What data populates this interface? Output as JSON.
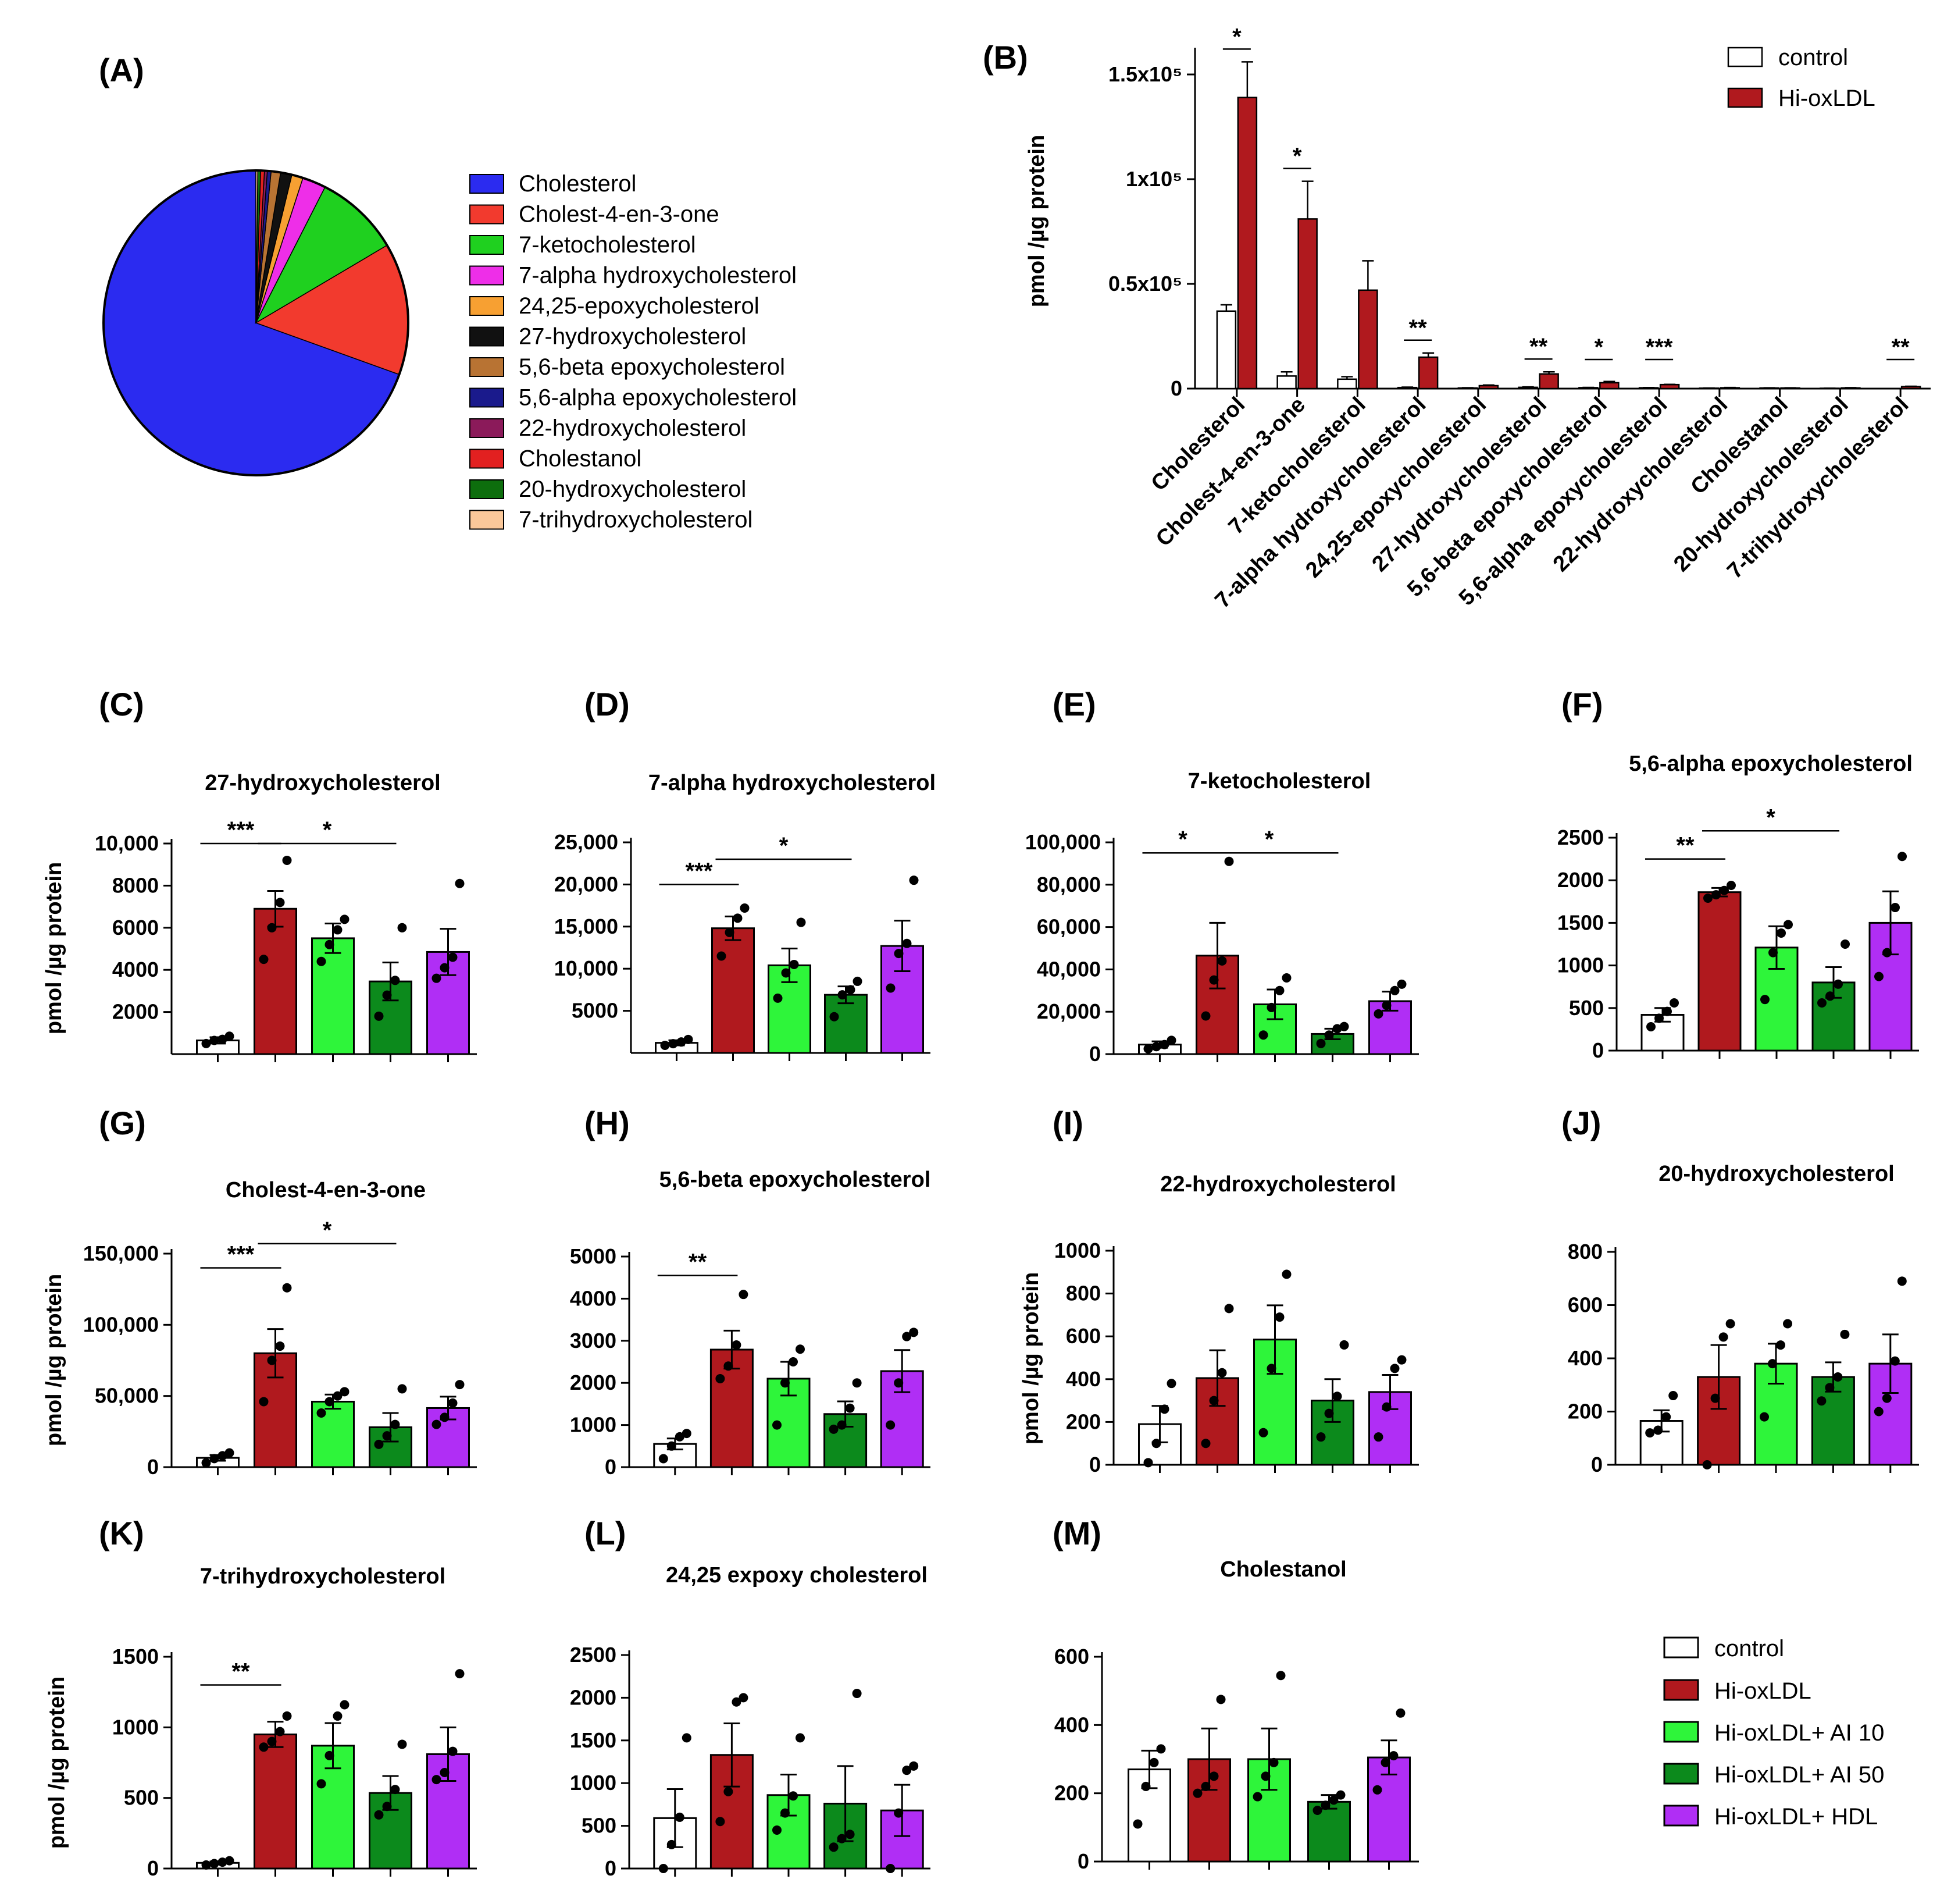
{
  "colors": {
    "control": "#ffffff",
    "hiox": "#b0191e",
    "ai10": "#2ef53a",
    "ai50": "#0c8a1c",
    "hdl": "#b02ef5"
  },
  "groups": [
    "control",
    "Hi-oxLDL",
    "Hi-oxLDL+ AI 10",
    "Hi-oxLDL+ AI 50",
    "Hi-oxLDL+ HDL"
  ],
  "chart_data": [
    {
      "id": "A",
      "panel_label": "(A)",
      "type": "pie",
      "slices": [
        {
          "label": "Cholesterol",
          "value": 69.5,
          "color": "#2b2bf0"
        },
        {
          "label": "Cholest-4-en-3-one",
          "value": 14.0,
          "color": "#f23a2e"
        },
        {
          "label": "7-ketocholesterol",
          "value": 9.0,
          "color": "#1fd01f"
        },
        {
          "label": "7-alpha hydroxycholesterol",
          "value": 2.5,
          "color": "#ee2ee8"
        },
        {
          "label": "24,25-epoxycholesterol",
          "value": 1.2,
          "color": "#f7a032"
        },
        {
          "label": "27-hydroxycholesterol",
          "value": 1.2,
          "color": "#111111"
        },
        {
          "label": "5,6-beta epoxycholesterol",
          "value": 1.0,
          "color": "#b87333"
        },
        {
          "label": "5,6-alpha epoxycholesterol",
          "value": 0.4,
          "color": "#1a1a8c"
        },
        {
          "label": "22-hydroxycholesterol",
          "value": 0.3,
          "color": "#8b1a5a"
        },
        {
          "label": "Cholestanol",
          "value": 0.4,
          "color": "#e22020"
        },
        {
          "label": "20-hydroxycholesterol",
          "value": 0.3,
          "color": "#0d6e0d"
        },
        {
          "label": "7-trihydroxycholesterol",
          "value": 0.2,
          "color": "#fbc89a"
        }
      ]
    },
    {
      "id": "B",
      "panel_label": "(B)",
      "type": "bar",
      "ylabel": "pmol /µg protein",
      "ylim": [
        0,
        160000
      ],
      "yticks": [
        {
          "v": 0,
          "t": "0"
        },
        {
          "v": 50000,
          "t": "0.5x10⁵"
        },
        {
          "v": 100000,
          "t": "1x10⁵"
        },
        {
          "v": 150000,
          "t": "1.5x10⁵"
        }
      ],
      "categories": [
        "Cholesterol",
        "Cholest-4-en-3-one",
        "7-ketocholesterol",
        "7-alpha hydroxycholesterol",
        "24,25-epoxycholesterol",
        "27-hydroxycholesterol",
        "5,6-beta epoxycholesterol",
        "5,6-alpha epoxycholesterol",
        "22-hydroxycholesterol",
        "Cholestanol",
        "20-hydroxycholesterol",
        "7-trihydroxycholesterol"
      ],
      "series": [
        {
          "name": "control",
          "values": [
            37000,
            6000,
            4500,
            500,
            300,
            600,
            450,
            400,
            200,
            300,
            150,
            60
          ],
          "errors": [
            3000,
            2000,
            1200,
            200,
            100,
            200,
            100,
            100,
            80,
            80,
            40,
            20
          ]
        },
        {
          "name": "Hi-oxLDL",
          "values": [
            139000,
            81000,
            47000,
            15000,
            1400,
            7000,
            2800,
            1900,
            400,
            300,
            330,
            950
          ],
          "errors": [
            17000,
            18000,
            14000,
            2000,
            300,
            1000,
            600,
            100,
            130,
            90,
            120,
            150
          ]
        }
      ],
      "significance": [
        {
          "cat": 0,
          "stars": "*"
        },
        {
          "cat": 1,
          "stars": "*"
        },
        {
          "cat": 3,
          "stars": "**"
        },
        {
          "cat": 5,
          "stars": "**"
        },
        {
          "cat": 6,
          "stars": "*"
        },
        {
          "cat": 7,
          "stars": "***"
        },
        {
          "cat": 11,
          "stars": "**"
        }
      ],
      "legend": [
        "control",
        "Hi-oxLDL"
      ]
    },
    {
      "id": "C",
      "panel_label": "(C)",
      "type": "bar",
      "title": "27-hydroxycholesterol",
      "ylabel": "pmol /µg protein",
      "ylim": [
        0,
        10000
      ],
      "yticks": [
        {
          "v": 2000,
          "t": "2000"
        },
        {
          "v": 4000,
          "t": "4000"
        },
        {
          "v": 6000,
          "t": "6000"
        },
        {
          "v": 8000,
          "t": "8000"
        },
        {
          "v": 10000,
          "t": "10,000"
        }
      ],
      "values": [
        650,
        6900,
        5500,
        3450,
        4850
      ],
      "errors": [
        150,
        850,
        700,
        900,
        1100
      ],
      "points": [
        [
          500,
          650,
          700,
          850
        ],
        [
          4500,
          6000,
          7200,
          9200
        ],
        [
          4400,
          5200,
          5900,
          6400
        ],
        [
          1800,
          2800,
          3500,
          6000
        ],
        [
          3600,
          4100,
          4600,
          8100
        ]
      ],
      "sig": [
        {
          "a": 0,
          "b": 1,
          "stars": "***",
          "level": 10000
        },
        {
          "a": 1,
          "b": 3,
          "stars": "*",
          "level": 10000
        }
      ]
    },
    {
      "id": "D",
      "panel_label": "(D)",
      "type": "bar",
      "title": "7-alpha hydroxycholesterol",
      "ylabel": "",
      "ylim": [
        0,
        25000
      ],
      "yticks": [
        {
          "v": 5000,
          "t": "5000"
        },
        {
          "v": 10000,
          "t": "10,000"
        },
        {
          "v": 15000,
          "t": "15,000"
        },
        {
          "v": 20000,
          "t": "20,000"
        },
        {
          "v": 25000,
          "t": "25,000"
        }
      ],
      "values": [
        1200,
        14800,
        10400,
        6900,
        12700
      ],
      "errors": [
        300,
        1400,
        2000,
        1000,
        3000
      ],
      "points": [
        [
          900,
          1100,
          1300,
          1600
        ],
        [
          11500,
          14300,
          16000,
          17200
        ],
        [
          6500,
          9500,
          10500,
          15500
        ],
        [
          4300,
          6900,
          7500,
          8500
        ],
        [
          7700,
          11800,
          13000,
          20500
        ]
      ],
      "sig": [
        {
          "a": 0,
          "b": 1,
          "stars": "***",
          "level": 20000
        },
        {
          "a": 1,
          "b": 3,
          "stars": "*",
          "level": 23000
        }
      ]
    },
    {
      "id": "E",
      "panel_label": "(E)",
      "type": "bar",
      "title": "7-ketocholesterol",
      "ylabel": "",
      "ylim": [
        0,
        100000
      ],
      "yticks": [
        {
          "v": 0,
          "t": "0"
        },
        {
          "v": 20000,
          "t": "20,000"
        },
        {
          "v": 40000,
          "t": "40,000"
        },
        {
          "v": 60000,
          "t": "60,000"
        },
        {
          "v": 80000,
          "t": "80,000"
        },
        {
          "v": 100000,
          "t": "100,000"
        }
      ],
      "values": [
        4500,
        46500,
        23500,
        9500,
        25000
      ],
      "errors": [
        1500,
        15500,
        7000,
        2500,
        4500
      ],
      "points": [
        [
          2500,
          3500,
          4500,
          6500
        ],
        [
          18000,
          35000,
          44000,
          91000
        ],
        [
          9000,
          22000,
          30000,
          36000
        ],
        [
          5000,
          9000,
          12000,
          13000
        ],
        [
          19000,
          23000,
          30000,
          33000
        ]
      ],
      "sig": [
        {
          "a": 0,
          "b": 1,
          "stars": "*",
          "level": 95000
        },
        {
          "a": 1,
          "b": 3,
          "stars": "*",
          "level": 95000
        }
      ]
    },
    {
      "id": "F",
      "panel_label": "(F)",
      "type": "bar",
      "title": "5,6-alpha epoxycholesterol",
      "ylabel": "",
      "ylim": [
        0,
        2500
      ],
      "yticks": [
        {
          "v": 0,
          "t": "0"
        },
        {
          "v": 500,
          "t": "500"
        },
        {
          "v": 1000,
          "t": "1000"
        },
        {
          "v": 1500,
          "t": "1500"
        },
        {
          "v": 2000,
          "t": "2000"
        },
        {
          "v": 2500,
          "t": "2500"
        }
      ],
      "values": [
        420,
        1860,
        1210,
        800,
        1500
      ],
      "errors": [
        80,
        50,
        250,
        180,
        370
      ],
      "points": [
        [
          280,
          380,
          460,
          560
        ],
        [
          1790,
          1830,
          1880,
          1940
        ],
        [
          600,
          1150,
          1380,
          1480
        ],
        [
          560,
          640,
          780,
          1250
        ],
        [
          870,
          1150,
          1680,
          2280
        ]
      ],
      "sig": [
        {
          "a": 0,
          "b": 1,
          "stars": "**",
          "level": 2250
        },
        {
          "a": 1,
          "b": 3,
          "stars": "*",
          "level": 2580
        }
      ]
    },
    {
      "id": "G",
      "panel_label": "(G)",
      "type": "bar",
      "title": "Cholest-4-en-3-one",
      "ylabel": "pmol /µg protein",
      "ylim": [
        0,
        150000
      ],
      "yticks": [
        {
          "v": 0,
          "t": "0"
        },
        {
          "v": 50000,
          "t": "50,000"
        },
        {
          "v": 100000,
          "t": "100,000"
        },
        {
          "v": 150000,
          "t": "150,000"
        }
      ],
      "values": [
        6500,
        80000,
        46000,
        28000,
        41500
      ],
      "errors": [
        2000,
        17000,
        5000,
        10000,
        8000
      ],
      "points": [
        [
          3000,
          6000,
          8000,
          10000
        ],
        [
          46000,
          75000,
          85000,
          126000
        ],
        [
          38000,
          46000,
          50000,
          53000
        ],
        [
          16000,
          22000,
          30000,
          55000
        ],
        [
          30000,
          35000,
          45000,
          58000
        ]
      ],
      "sig": [
        {
          "a": 0,
          "b": 1,
          "stars": "***",
          "level": 140000
        },
        {
          "a": 1,
          "b": 3,
          "stars": "*",
          "level": 157000
        }
      ]
    },
    {
      "id": "H",
      "panel_label": "(H)",
      "type": "bar",
      "title": "5,6-beta epoxycholesterol",
      "ylabel": "",
      "ylim": [
        0,
        5000
      ],
      "yticks": [
        {
          "v": 0,
          "t": "0"
        },
        {
          "v": 1000,
          "t": "1000"
        },
        {
          "v": 2000,
          "t": "2000"
        },
        {
          "v": 3000,
          "t": "3000"
        },
        {
          "v": 4000,
          "t": "4000"
        },
        {
          "v": 5000,
          "t": "5000"
        }
      ],
      "values": [
        550,
        2790,
        2100,
        1260,
        2280
      ],
      "errors": [
        130,
        450,
        400,
        300,
        500
      ],
      "points": [
        [
          200,
          500,
          720,
          800
        ],
        [
          2100,
          2400,
          2900,
          4100
        ],
        [
          1000,
          2000,
          2500,
          2800
        ],
        [
          900,
          1000,
          1400,
          2000
        ],
        [
          1000,
          2000,
          3100,
          3200
        ]
      ],
      "sig": [
        {
          "a": 0,
          "b": 1,
          "stars": "**",
          "level": 4550
        }
      ]
    },
    {
      "id": "I",
      "panel_label": "(I)",
      "type": "bar",
      "title": "22-hydroxycholesterol",
      "ylabel": "pmol /µg protein",
      "ylim": [
        0,
        1000
      ],
      "yticks": [
        {
          "v": 0,
          "t": "0"
        },
        {
          "v": 200,
          "t": "200"
        },
        {
          "v": 400,
          "t": "400"
        },
        {
          "v": 600,
          "t": "600"
        },
        {
          "v": 800,
          "t": "800"
        },
        {
          "v": 1000,
          "t": "1000"
        }
      ],
      "values": [
        190,
        405,
        585,
        300,
        340
      ],
      "errors": [
        85,
        130,
        160,
        100,
        80
      ],
      "points": [
        [
          10,
          100,
          260,
          380
        ],
        [
          100,
          300,
          430,
          730
        ],
        [
          150,
          450,
          690,
          890
        ],
        [
          130,
          240,
          320,
          560
        ],
        [
          130,
          270,
          450,
          490
        ]
      ],
      "sig": []
    },
    {
      "id": "J",
      "panel_label": "(J)",
      "type": "bar",
      "title": "20-hydroxycholesterol",
      "ylabel": "",
      "ylim": [
        0,
        800
      ],
      "yticks": [
        {
          "v": 0,
          "t": "0"
        },
        {
          "v": 200,
          "t": "200"
        },
        {
          "v": 400,
          "t": "400"
        },
        {
          "v": 600,
          "t": "600"
        },
        {
          "v": 800,
          "t": "800"
        }
      ],
      "values": [
        165,
        330,
        380,
        330,
        380
      ],
      "errors": [
        40,
        120,
        75,
        55,
        110
      ],
      "points": [
        [
          120,
          130,
          180,
          260
        ],
        [
          0,
          250,
          480,
          530
        ],
        [
          180,
          380,
          450,
          530
        ],
        [
          240,
          290,
          330,
          490
        ],
        [
          200,
          250,
          390,
          690
        ]
      ],
      "sig": []
    },
    {
      "id": "K",
      "panel_label": "(K)",
      "type": "bar",
      "title": "7-trihydroxycholesterol",
      "ylabel": "pmol /µg protein",
      "ylim": [
        0,
        1500
      ],
      "yticks": [
        {
          "v": 0,
          "t": "0"
        },
        {
          "v": 500,
          "t": "500"
        },
        {
          "v": 1000,
          "t": "1000"
        },
        {
          "v": 1500,
          "t": "1500"
        }
      ],
      "values": [
        40,
        950,
        870,
        535,
        810
      ],
      "errors": [
        10,
        90,
        160,
        120,
        190
      ],
      "points": [
        [
          25,
          35,
          45,
          55
        ],
        [
          860,
          900,
          970,
          1080
        ],
        [
          600,
          800,
          1080,
          1160
        ],
        [
          380,
          440,
          560,
          880
        ],
        [
          630,
          680,
          830,
          1380
        ]
      ],
      "sig": [
        {
          "a": 0,
          "b": 1,
          "stars": "**",
          "level": 1300
        }
      ]
    },
    {
      "id": "L",
      "panel_label": "(L)",
      "type": "bar",
      "title": "24,25 expoxy cholesterol",
      "ylabel": "",
      "ylim": [
        0,
        2500
      ],
      "yticks": [
        {
          "v": 0,
          "t": "0"
        },
        {
          "v": 500,
          "t": "500"
        },
        {
          "v": 1000,
          "t": "1000"
        },
        {
          "v": 1500,
          "t": "1500"
        },
        {
          "v": 2000,
          "t": "2000"
        },
        {
          "v": 2500,
          "t": "2500"
        }
      ],
      "values": [
        590,
        1330,
        860,
        760,
        680
      ],
      "errors": [
        340,
        370,
        240,
        440,
        300
      ],
      "points": [
        [
          0,
          280,
          600,
          1530
        ],
        [
          550,
          900,
          1950,
          2000
        ],
        [
          450,
          650,
          850,
          1530
        ],
        [
          250,
          350,
          400,
          2050
        ],
        [
          0,
          650,
          1150,
          1200
        ]
      ],
      "sig": []
    },
    {
      "id": "M",
      "panel_label": "(M)",
      "type": "bar",
      "title": "Cholestanol",
      "ylabel": "",
      "ylim": [
        0,
        600
      ],
      "yticks": [
        {
          "v": 0,
          "t": "0"
        },
        {
          "v": 200,
          "t": "200"
        },
        {
          "v": 400,
          "t": "400"
        },
        {
          "v": 600,
          "t": "600"
        }
      ],
      "values": [
        270,
        300,
        300,
        175,
        305
      ],
      "errors": [
        55,
        90,
        90,
        20,
        50
      ],
      "points": [
        [
          110,
          220,
          290,
          330
        ],
        [
          200,
          220,
          250,
          475
        ],
        [
          190,
          250,
          290,
          545
        ],
        [
          150,
          165,
          180,
          195
        ],
        [
          210,
          290,
          310,
          435
        ]
      ],
      "sig": []
    }
  ]
}
